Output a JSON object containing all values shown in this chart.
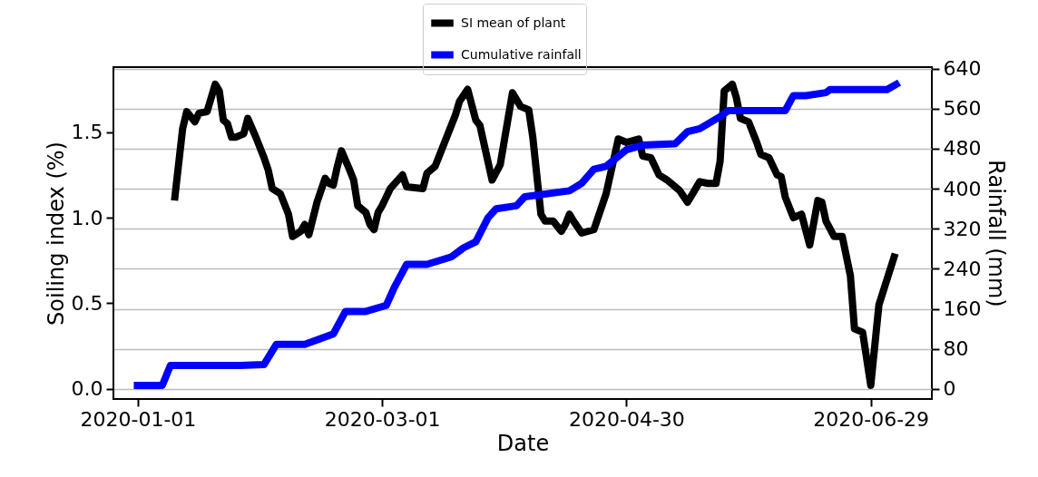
{
  "chart_data": {
    "type": "line",
    "xlabel": "Date",
    "ylabel": "Soiling index (%)",
    "y2label": "Rainfall (mm)",
    "xlim": [
      "2019-12-26",
      "2020-07-14"
    ],
    "xticks": [
      "2020-01-01",
      "2020-03-01",
      "2020-04-30",
      "2020-06-29"
    ],
    "ylim": [
      -0.06,
      1.88
    ],
    "yticks": [
      {
        "value": 0,
        "label": "0.0"
      },
      {
        "value": 0.5,
        "label": "0.5"
      },
      {
        "value": 1,
        "label": "1.0"
      },
      1.5
    ],
    "y2lim": [
      -20,
      643
    ],
    "y2ticks": [
      0,
      80,
      160,
      240,
      320,
      400,
      480,
      560,
      640
    ],
    "grid": "y",
    "legend": "top",
    "line_style": "solid",
    "series": [
      {
        "name": "SI mean of plant",
        "color": "#000000",
        "x": [
          "2020-01-10",
          "2020-01-12",
          "2020-01-13",
          "2020-01-15",
          "2020-01-16",
          "2020-01-18",
          "2020-01-20",
          "2020-01-21",
          "2020-01-22",
          "2020-01-23",
          "2020-01-24",
          "2020-01-25",
          "2020-01-27",
          "2020-01-28",
          "2020-01-30",
          "2020-02-01",
          "2020-02-02",
          "2020-02-03",
          "2020-02-05",
          "2020-02-07",
          "2020-02-08",
          "2020-02-10",
          "2020-02-11",
          "2020-02-12",
          "2020-02-14",
          "2020-02-16",
          "2020-02-17",
          "2020-02-18",
          "2020-02-19",
          "2020-02-20",
          "2020-02-22",
          "2020-02-23",
          "2020-02-24",
          "2020-02-26",
          "2020-02-27",
          "2020-02-28",
          "2020-02-29",
          "2020-03-01",
          "2020-03-03",
          "2020-03-06",
          "2020-03-07",
          "2020-03-11",
          "2020-03-12",
          "2020-03-14",
          "2020-03-19",
          "2020-03-20",
          "2020-03-22",
          "2020-03-24",
          "2020-03-25",
          "2020-03-28",
          "2020-03-30",
          "2020-04-02",
          "2020-04-04",
          "2020-04-06",
          "2020-04-07",
          "2020-04-09",
          "2020-04-10",
          "2020-04-12",
          "2020-04-14",
          "2020-04-15",
          "2020-04-16",
          "2020-04-17",
          "2020-04-19",
          "2020-04-22",
          "2020-04-25",
          "2020-04-28",
          "2020-04-30",
          "2020-05-03",
          "2020-05-04",
          "2020-05-06",
          "2020-05-08",
          "2020-05-10",
          "2020-05-13",
          "2020-05-15",
          "2020-05-18",
          "2020-05-20",
          "2020-05-22",
          "2020-05-23",
          "2020-05-24",
          "2020-05-26",
          "2020-05-27",
          "2020-05-28",
          "2020-05-30",
          "2020-06-01",
          "2020-06-02",
          "2020-06-04",
          "2020-06-06",
          "2020-06-07",
          "2020-06-08",
          "2020-06-10",
          "2020-06-12",
          "2020-06-14",
          "2020-06-16",
          "2020-06-17",
          "2020-06-18",
          "2020-06-20",
          "2020-06-22",
          "2020-06-24",
          "2020-06-25",
          "2020-06-27",
          "2020-06-29",
          "2020-07-01",
          "2020-07-05"
        ],
        "values": [
          1.1,
          1.52,
          1.62,
          1.56,
          1.61,
          1.62,
          1.78,
          1.74,
          1.57,
          1.55,
          1.47,
          1.47,
          1.49,
          1.58,
          1.47,
          1.35,
          1.28,
          1.17,
          1.14,
          1.02,
          0.89,
          0.92,
          0.96,
          0.9,
          1.09,
          1.23,
          1.2,
          1.19,
          1.3,
          1.39,
          1.28,
          1.22,
          1.07,
          1.03,
          0.96,
          0.93,
          1.03,
          1.07,
          1.17,
          1.25,
          1.18,
          1.17,
          1.26,
          1.3,
          1.6,
          1.68,
          1.75,
          1.57,
          1.54,
          1.22,
          1.31,
          1.73,
          1.65,
          1.63,
          1.47,
          1.02,
          0.98,
          0.98,
          0.92,
          0.96,
          1.02,
          0.98,
          0.91,
          0.93,
          1.14,
          1.46,
          1.44,
          1.46,
          1.36,
          1.35,
          1.25,
          1.22,
          1.16,
          1.09,
          1.21,
          1.2,
          1.2,
          1.33,
          1.74,
          1.78,
          1.7,
          1.58,
          1.56,
          1.44,
          1.37,
          1.35,
          1.25,
          1.24,
          1.12,
          1.0,
          1.02,
          0.84,
          1.1,
          1.09,
          0.98,
          0.89,
          0.89,
          0.66,
          0.35,
          0.33,
          0.02,
          0.49,
          0.79
        ]
      },
      {
        "name": "Cumulative rainfall",
        "color": "#0000ff",
        "axis": "y2",
        "x": [
          "2019-12-31",
          "2020-01-07",
          "2020-01-09",
          "2020-01-26",
          "2020-02-01",
          "2020-02-04",
          "2020-02-11",
          "2020-02-18",
          "2020-02-21",
          "2020-02-26",
          "2020-03-02",
          "2020-03-04",
          "2020-03-07",
          "2020-03-12",
          "2020-03-18",
          "2020-03-21",
          "2020-03-24",
          "2020-03-27",
          "2020-03-29",
          "2020-04-03",
          "2020-04-05",
          "2020-04-16",
          "2020-04-19",
          "2020-04-22",
          "2020-04-25",
          "2020-04-30",
          "2020-05-04",
          "2020-05-12",
          "2020-05-15",
          "2020-05-18",
          "2020-05-23",
          "2020-05-25",
          "2020-06-08",
          "2020-06-10",
          "2020-06-13",
          "2020-06-18",
          "2020-06-19",
          "2020-07-03",
          "2020-07-06"
        ],
        "values": [
          7,
          7,
          47,
          47,
          49,
          89,
          89,
          110,
          155,
          155,
          167,
          203,
          249,
          249,
          264,
          282,
          294,
          342,
          360,
          366,
          384,
          396,
          411,
          439,
          445,
          478,
          487,
          490,
          514,
          520,
          544,
          556,
          556,
          586,
          586,
          592,
          598,
          598,
          612
        ]
      }
    ]
  }
}
